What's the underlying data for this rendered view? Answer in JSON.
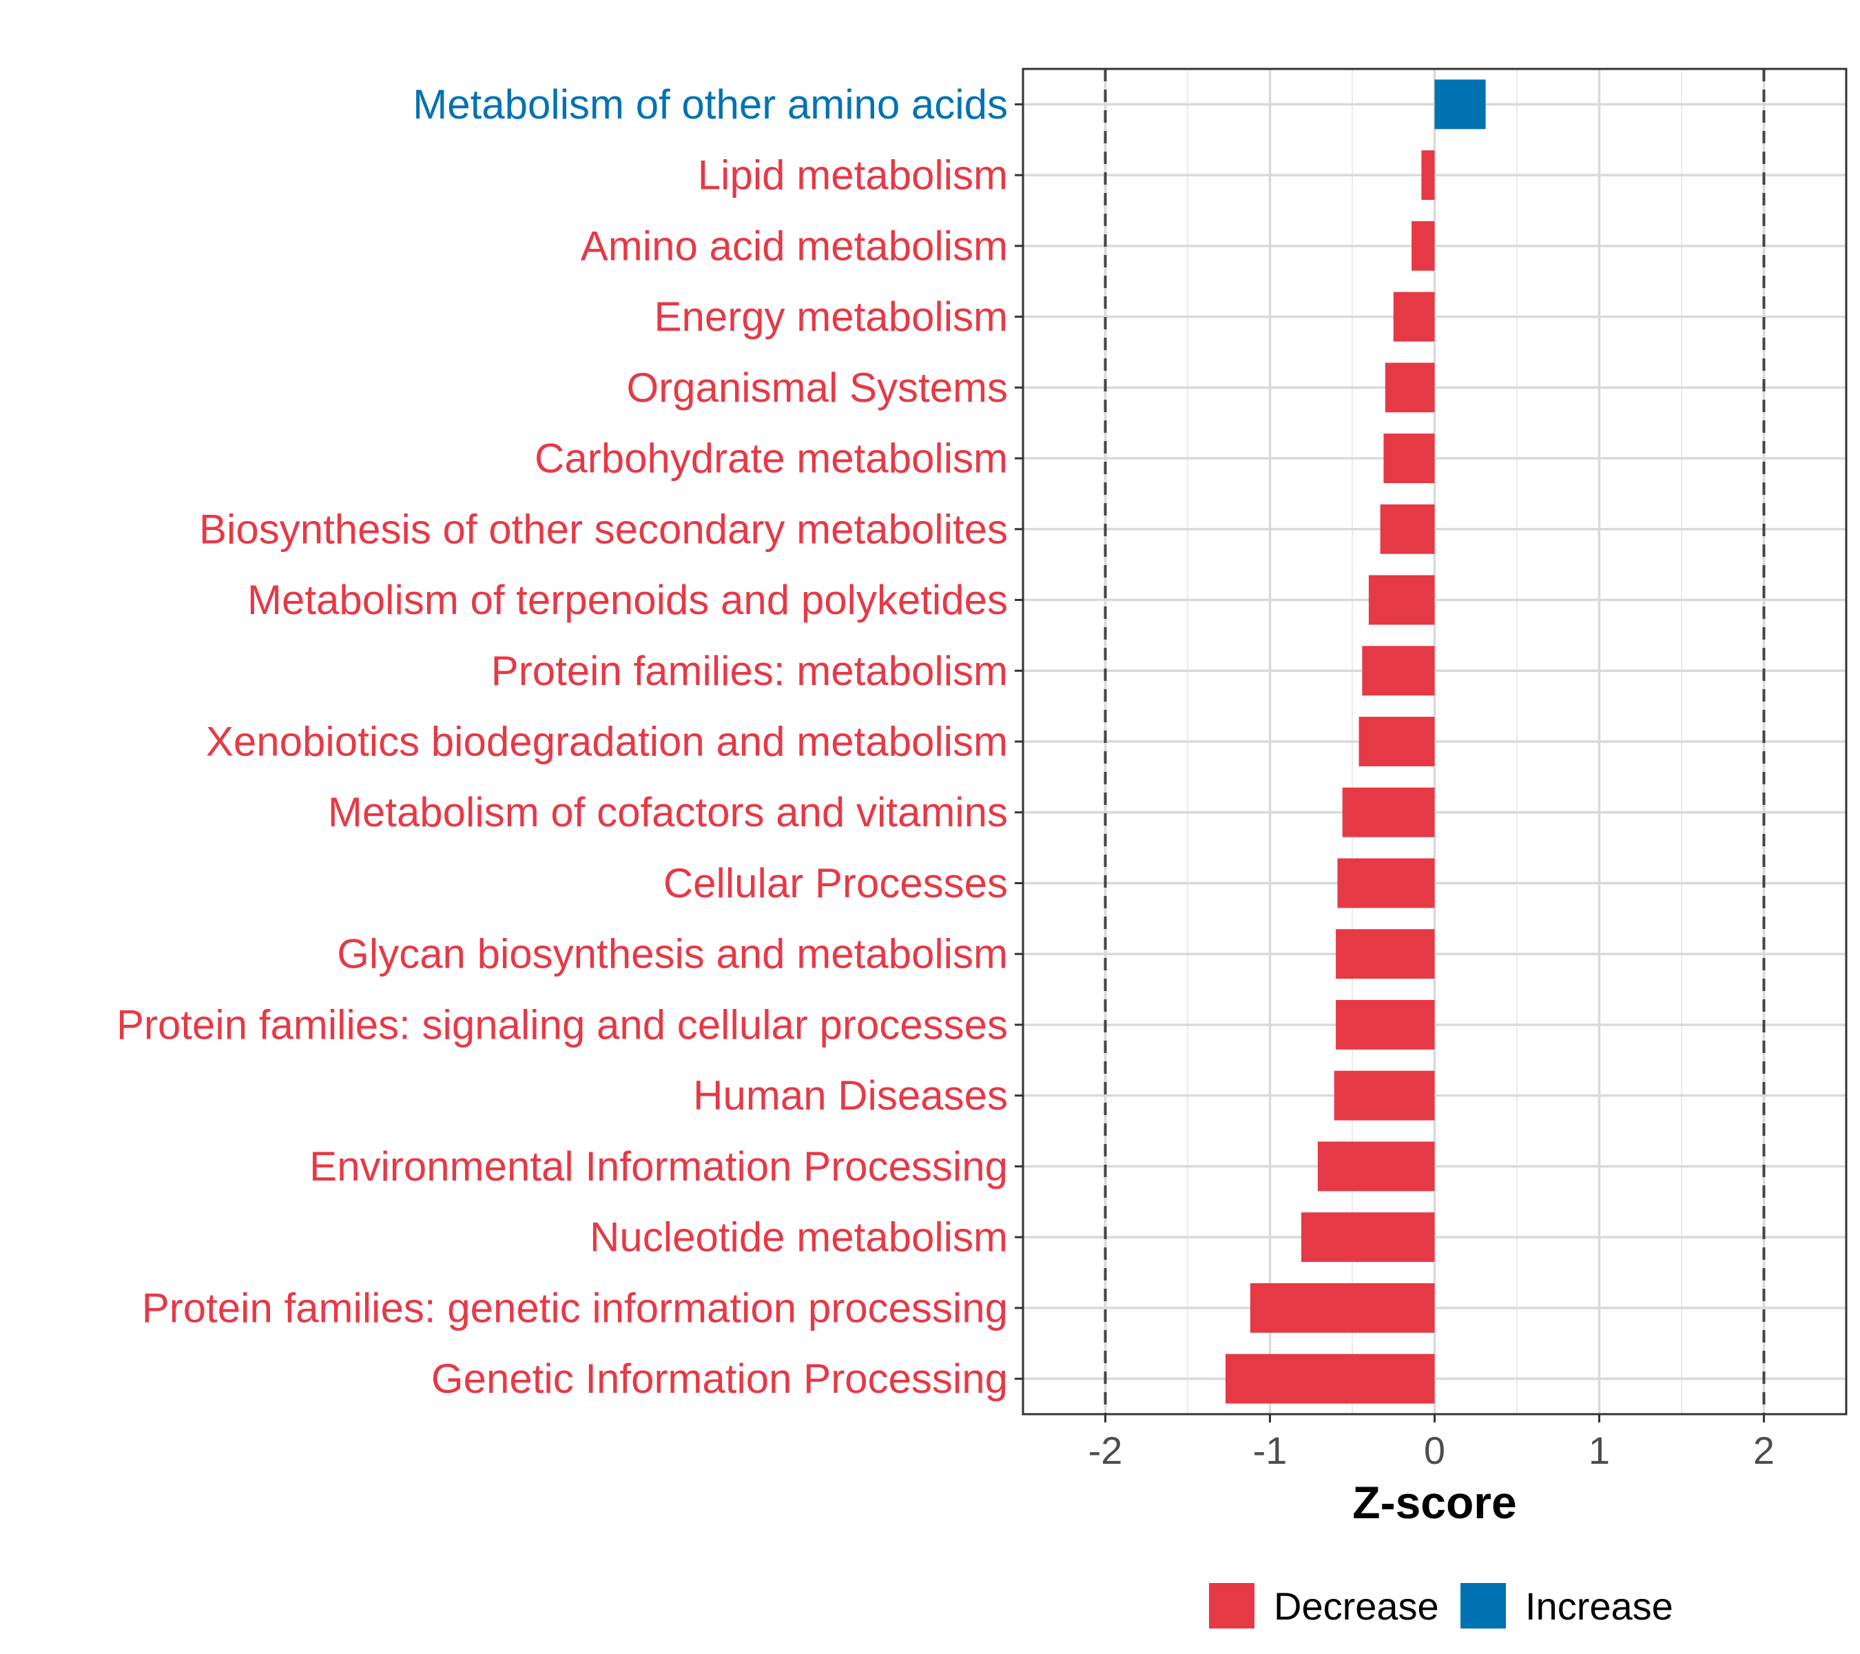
{
  "chart_data": {
    "type": "bar",
    "orientation": "horizontal",
    "title": "",
    "xlabel": "Z-score",
    "ylabel": "",
    "xlim": [
      -2.5,
      2.5
    ],
    "xticks": [
      -2,
      -1,
      0,
      1,
      2
    ],
    "xtick_labels": [
      "-2",
      "-1",
      "0",
      "1",
      "2"
    ],
    "reference_lines": [
      -2,
      2
    ],
    "grid": true,
    "categories": [
      "Metabolism of other amino acids",
      "Lipid metabolism",
      "Amino acid metabolism",
      "Energy metabolism",
      "Organismal Systems",
      "Carbohydrate metabolism",
      "Biosynthesis of other secondary metabolites",
      "Metabolism of terpenoids and polyketides",
      "Protein families: metabolism",
      "Xenobiotics biodegradation and metabolism",
      "Metabolism of cofactors and vitamins",
      "Cellular Processes",
      "Glycan biosynthesis and metabolism",
      "Protein families: signaling and cellular processes",
      "Human Diseases",
      "Environmental Information Processing",
      "Nucleotide metabolism",
      "Protein families: genetic information processing",
      "Genetic Information Processing"
    ],
    "values": [
      0.31,
      -0.08,
      -0.14,
      -0.25,
      -0.3,
      -0.31,
      -0.33,
      -0.4,
      -0.44,
      -0.46,
      -0.56,
      -0.59,
      -0.6,
      -0.6,
      -0.61,
      -0.71,
      -0.81,
      -1.12,
      -1.27
    ],
    "legend": {
      "position": "bottom",
      "entries": [
        {
          "name": "Decrease",
          "color": "#E63946"
        },
        {
          "name": "Increase",
          "color": "#0072B2"
        }
      ]
    },
    "colors": {
      "decrease": "#E63946",
      "increase": "#0072B2"
    }
  }
}
